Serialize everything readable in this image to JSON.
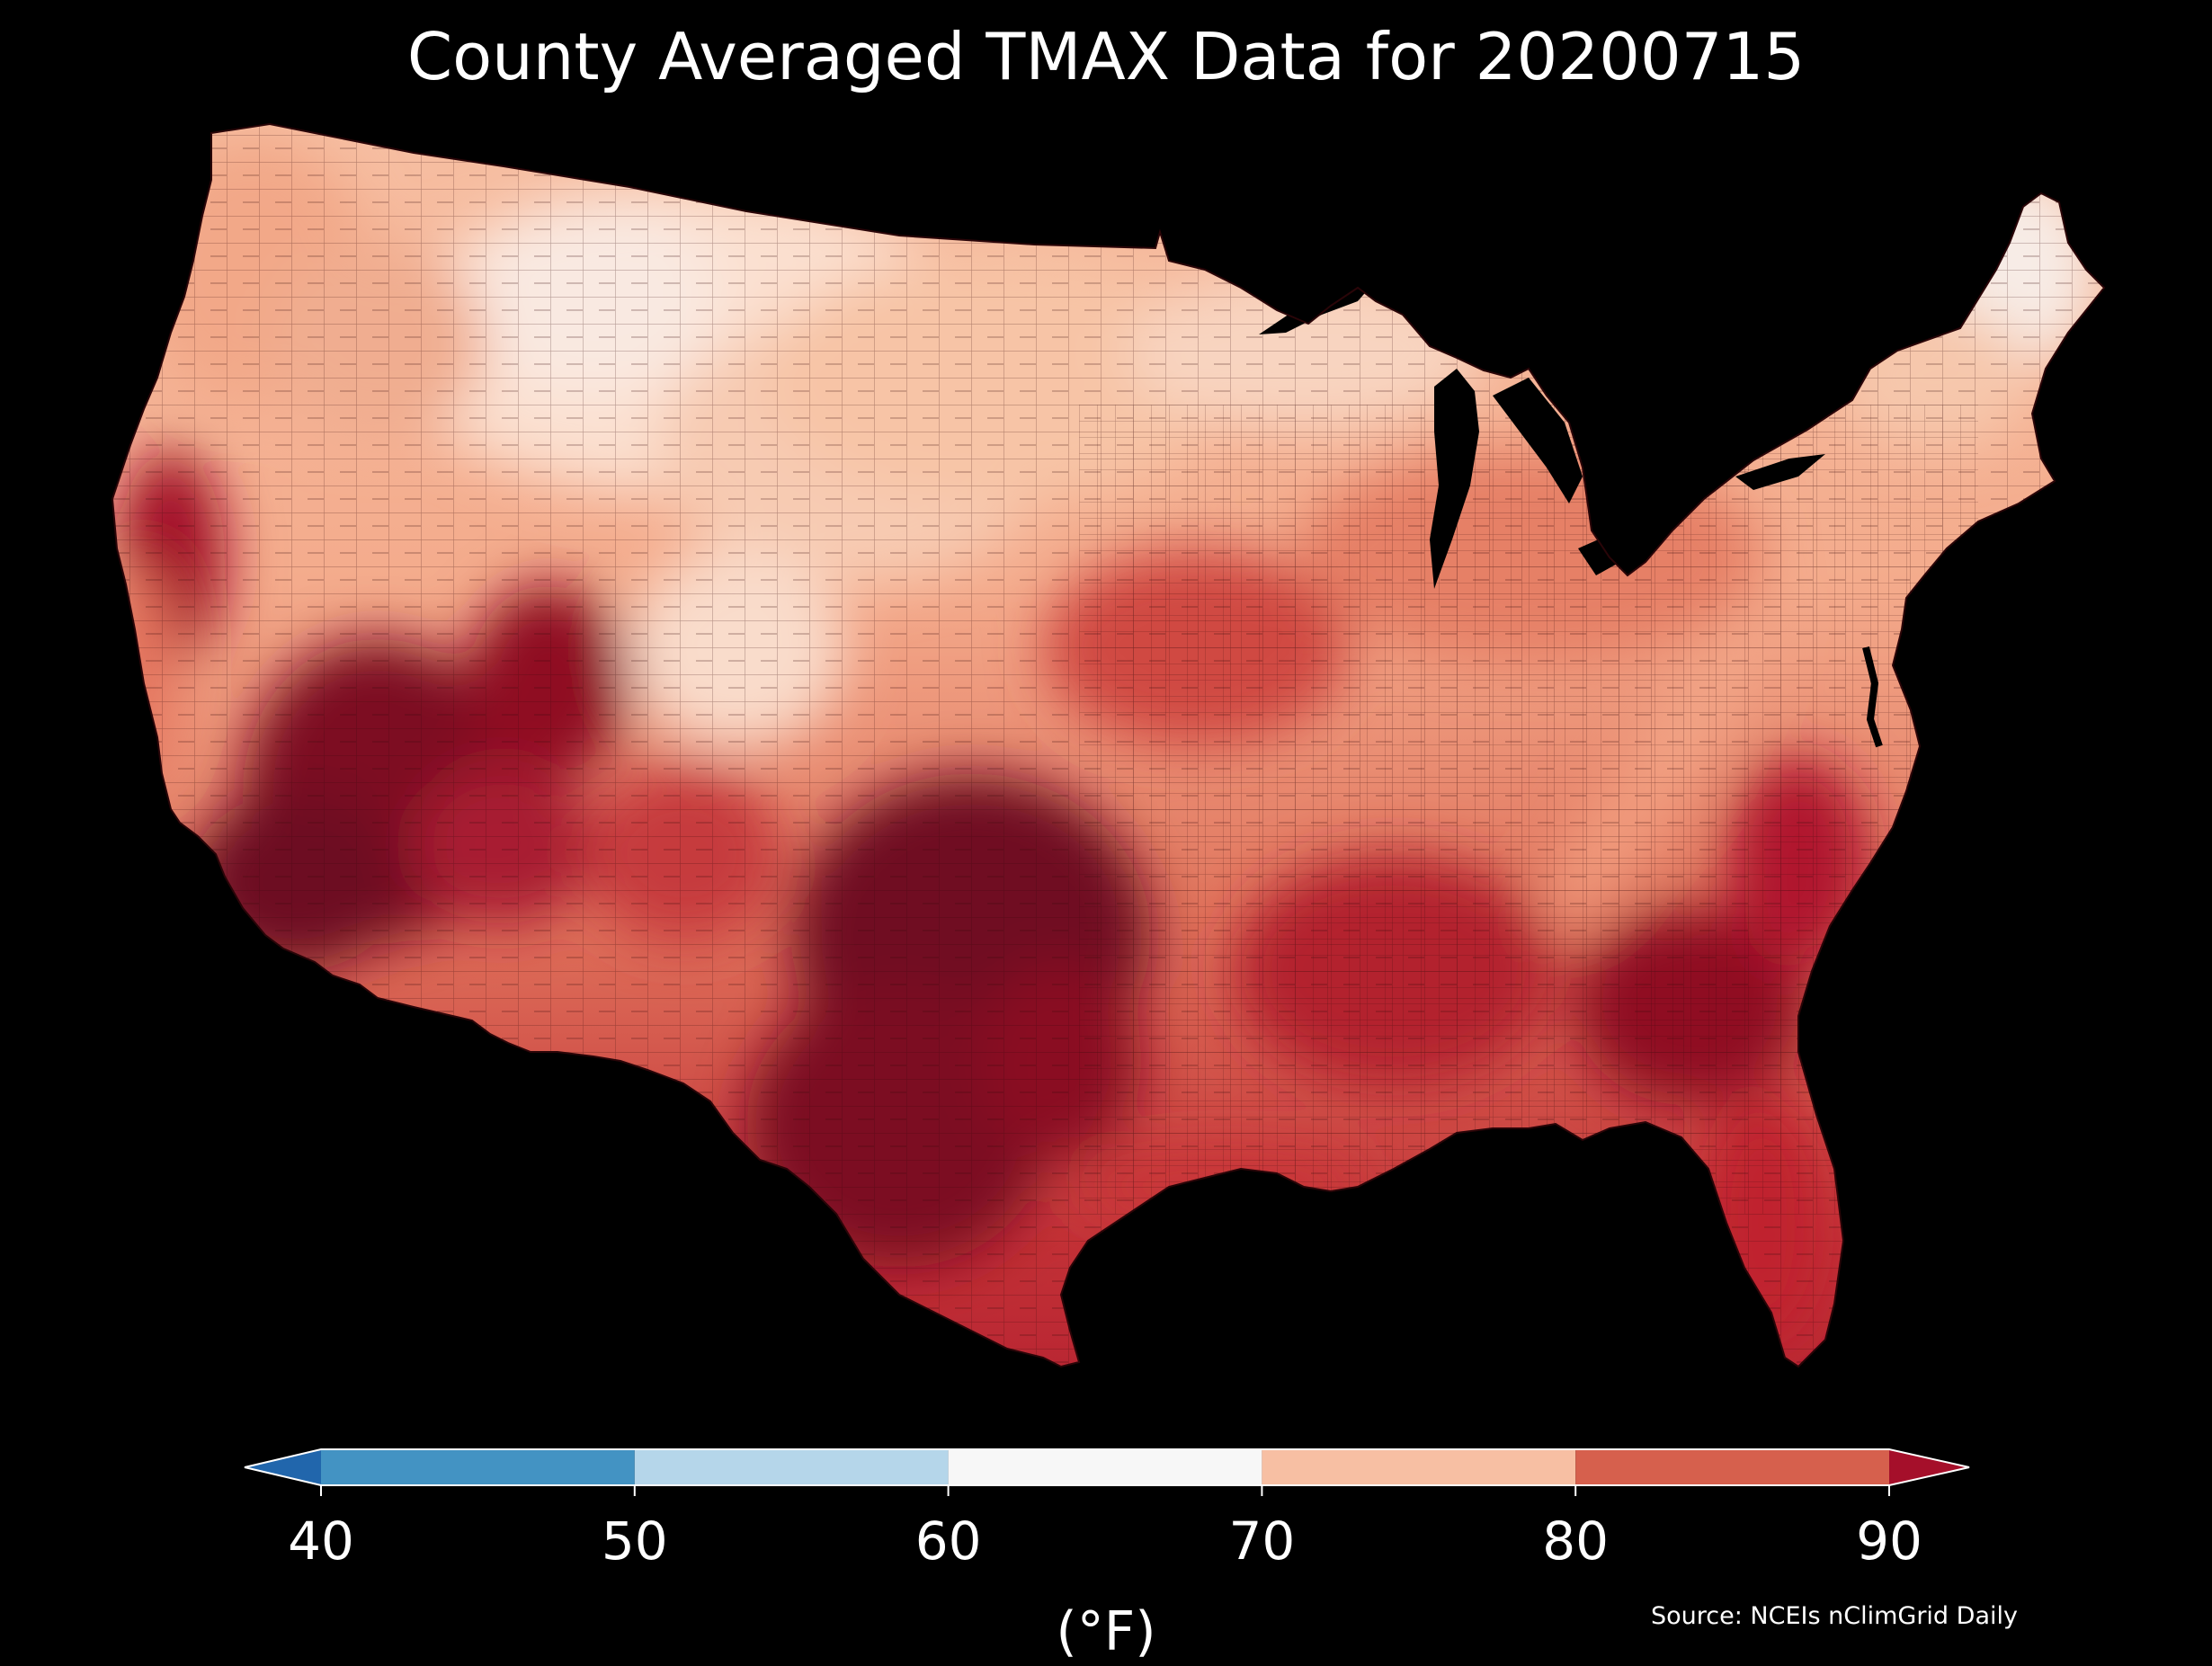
{
  "title": "County Averaged TMAX Data for 20200715",
  "colorbar": {
    "ticks": [
      "40",
      "50",
      "60",
      "70",
      "80",
      "90"
    ],
    "unit_label": "(°F)",
    "bins": [
      {
        "min": 40,
        "max": 50,
        "color": "#4393c3"
      },
      {
        "min": 50,
        "max": 60,
        "color": "#b5d6ea"
      },
      {
        "min": 60,
        "max": 70,
        "color": "#f7f7f7"
      },
      {
        "min": 70,
        "max": 80,
        "color": "#f7bfa3"
      },
      {
        "min": 80,
        "max": 90,
        "color": "#d6604d"
      }
    ],
    "under_color": "#2166ac",
    "over_color": "#a50f2a"
  },
  "source": "Source: NCEIs nClimGrid Daily",
  "map": {
    "region": "Contiguous United States, county level",
    "variable": "TMAX",
    "date": "20200715",
    "regional_pattern": {
      "northern_rockies_and_plains": "60-80",
      "new_england_north": "60-70",
      "southwest_desert": ">90",
      "texas_oklahoma": ">90",
      "southeast_atlantic": "80->90",
      "appalachians": "70-80",
      "pacific_coast": "70-80"
    }
  }
}
